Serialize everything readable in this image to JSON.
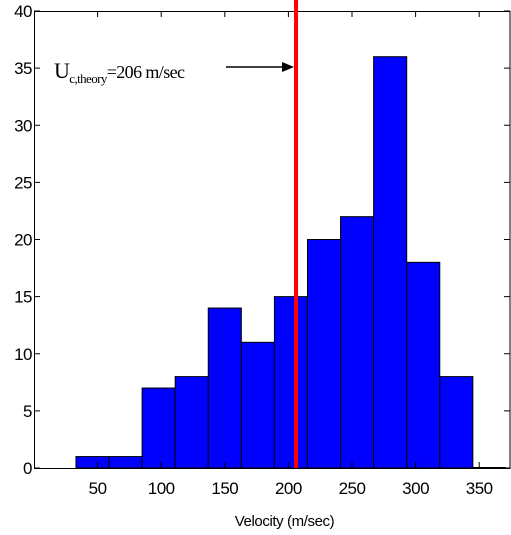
{
  "chart_data": {
    "type": "bar",
    "title": "",
    "xlabel": "Velocity (m/sec)",
    "ylabel": "",
    "xlim": [
      0,
      375
    ],
    "ylim": [
      0,
      40
    ],
    "xticks": [
      50,
      100,
      150,
      200,
      250,
      300,
      350
    ],
    "yticks": [
      0,
      5,
      10,
      15,
      20,
      25,
      30,
      35,
      40
    ],
    "grid": false,
    "bin_edges": [
      33,
      59,
      85,
      111,
      137,
      163,
      189,
      215,
      241,
      267,
      293,
      319,
      345
    ],
    "values": [
      1,
      1,
      7,
      8,
      14,
      11,
      15,
      20,
      22,
      36,
      18,
      8,
      0
    ],
    "bar_color": "#0000FF",
    "reference_line": {
      "x": 206,
      "color": "#FF0000"
    },
    "annotation": {
      "main": "U",
      "subscript": "c,theory",
      "suffix": "=206 m/sec",
      "arrow_to_x": 206
    }
  }
}
